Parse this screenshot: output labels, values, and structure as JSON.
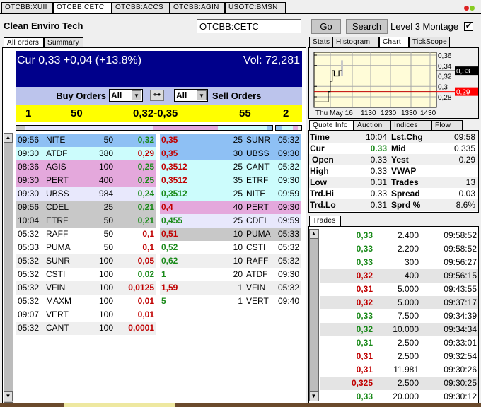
{
  "symbol_tabs": [
    "OTCBB:XUII",
    "OTCBB:CETC",
    "OTCBB:ACCS",
    "OTCBB:AGIN",
    "USOTC:BMSN"
  ],
  "selected_symbol_tab": 1,
  "header": {
    "company": "Clean Enviro Tech",
    "symbol_value": "OTCBB:CETC",
    "go_label": "Go",
    "search_label": "Search",
    "level3_label": "Level 3 Montage",
    "level3_checked": true
  },
  "left_tabs": [
    "All orders",
    "Summary"
  ],
  "summary": {
    "cur": "Cur 0,33 +0,04 (+13.8%)",
    "vol": "Vol: 72,281",
    "buy_label": "Buy Orders",
    "sell_label": "Sell Orders",
    "buy_filter": "All",
    "sell_filter": "All"
  },
  "inside": {
    "bid_count": "1",
    "bid_size": "50",
    "spread": "0,32-0,35",
    "ask_size": "55",
    "ask_count": "2"
  },
  "bid_orders": [
    {
      "time": "09:56",
      "mm": "NITE",
      "size": "50",
      "price": "0,32",
      "pc": "g",
      "bg": "#8ec0f4"
    },
    {
      "time": "09:30",
      "mm": "ATDF",
      "size": "380",
      "price": "0,29",
      "pc": "r",
      "bg": "#ccfcfc"
    },
    {
      "time": "08:36",
      "mm": "AGIS",
      "size": "100",
      "price": "0,25",
      "pc": "g",
      "bg": "#e4a8dc"
    },
    {
      "time": "09:30",
      "mm": "PERT",
      "size": "400",
      "price": "0,25",
      "pc": "g",
      "bg": "#e4a8dc"
    },
    {
      "time": "09:30",
      "mm": "UBSS",
      "size": "984",
      "price": "0,24",
      "pc": "g",
      "bg": "#e8e8fc"
    },
    {
      "time": "09:56",
      "mm": "CDEL",
      "size": "25",
      "price": "0,21",
      "pc": "g",
      "bg": "#c8c8c8"
    },
    {
      "time": "10:04",
      "mm": "ETRF",
      "size": "50",
      "price": "0,21",
      "pc": "g",
      "bg": "#c8c8c8"
    },
    {
      "time": "05:32",
      "mm": "RAFF",
      "size": "50",
      "price": "0,1",
      "pc": "r",
      "bg": "#ffffff"
    },
    {
      "time": "05:33",
      "mm": "PUMA",
      "size": "50",
      "price": "0,1",
      "pc": "r",
      "bg": "#ffffff"
    },
    {
      "time": "05:32",
      "mm": "SUNR",
      "size": "100",
      "price": "0,05",
      "pc": "r",
      "bg": "#efefef"
    },
    {
      "time": "05:32",
      "mm": "CSTI",
      "size": "100",
      "price": "0,02",
      "pc": "g",
      "bg": "#ffffff"
    },
    {
      "time": "05:32",
      "mm": "VFIN",
      "size": "100",
      "price": "0,0125",
      "pc": "r",
      "bg": "#efefef"
    },
    {
      "time": "05:32",
      "mm": "MAXM",
      "size": "100",
      "price": "0,01",
      "pc": "r",
      "bg": "#ffffff"
    },
    {
      "time": "09:07",
      "mm": "VERT",
      "size": "100",
      "price": "0,01",
      "pc": "r",
      "bg": "#ffffff"
    },
    {
      "time": "05:32",
      "mm": "CANT",
      "size": "100",
      "price": "0,0001",
      "pc": "r",
      "bg": "#efefef"
    }
  ],
  "ask_orders": [
    {
      "price": "0,35",
      "pc": "r",
      "size": "25",
      "mm": "SUNR",
      "time": "05:32",
      "bg": "#8ec0f4"
    },
    {
      "price": "0,35",
      "pc": "r",
      "size": "30",
      "mm": "UBSS",
      "time": "09:30",
      "bg": "#8ec0f4"
    },
    {
      "price": "0,3512",
      "pc": "r",
      "size": "25",
      "mm": "CANT",
      "time": "05:32",
      "bg": "#ccfcfc"
    },
    {
      "price": "0,3512",
      "pc": "r",
      "size": "35",
      "mm": "ETRF",
      "time": "09:30",
      "bg": "#ccfcfc"
    },
    {
      "price": "0,3512",
      "pc": "g",
      "size": "25",
      "mm": "NITE",
      "time": "09:59",
      "bg": "#ccfcfc"
    },
    {
      "price": "0,4",
      "pc": "r",
      "size": "40",
      "mm": "PERT",
      "time": "09:30",
      "bg": "#e4a8dc"
    },
    {
      "price": "0,455",
      "pc": "g",
      "size": "25",
      "mm": "CDEL",
      "time": "09:59",
      "bg": "#e8e8fc"
    },
    {
      "price": "0,51",
      "pc": "r",
      "size": "10",
      "mm": "PUMA",
      "time": "05:33",
      "bg": "#c8c8c8"
    },
    {
      "price": "0,52",
      "pc": "g",
      "size": "10",
      "mm": "CSTI",
      "time": "05:32",
      "bg": "#ffffff"
    },
    {
      "price": "0,62",
      "pc": "g",
      "size": "10",
      "mm": "RAFF",
      "time": "05:32",
      "bg": "#efefef"
    },
    {
      "price": "1",
      "pc": "g",
      "size": "20",
      "mm": "ATDF",
      "time": "09:30",
      "bg": "#ffffff"
    },
    {
      "price": "1,59",
      "pc": "r",
      "size": "1",
      "mm": "VFIN",
      "time": "05:32",
      "bg": "#efefef"
    },
    {
      "price": "5",
      "pc": "g",
      "size": "1",
      "mm": "VERT",
      "time": "09:40",
      "bg": "#ffffff"
    }
  ],
  "right_tabs": [
    "Stats",
    "Histogram",
    "Chart",
    "TickScope"
  ],
  "chart": {
    "y_ticks": [
      "0,36",
      "0,34",
      "0,32",
      "0,3",
      "0,28"
    ],
    "y_tick_values": [
      0.36,
      0.34,
      0.32,
      0.3,
      0.28
    ],
    "x_labels": [
      "Thu May 16",
      "1130",
      "1230",
      "1330",
      "1430"
    ],
    "cur_label": "0,33",
    "cur_value": 0.33,
    "yest_label": "0,29",
    "yest_value": 0.29,
    "price_steps": [
      [
        "09:12",
        0.27
      ],
      [
        "09:53",
        0.29
      ],
      [
        "09:59",
        0.31
      ],
      [
        "10:05",
        0.33
      ],
      [
        "10:11",
        0.32
      ],
      [
        "10:20",
        0.32
      ],
      [
        "10:25",
        0.33
      ],
      [
        "10:33",
        0.33
      ]
    ]
  },
  "quote_tabs": [
    "Quote Info",
    "Auction",
    "Indices",
    "Flow"
  ],
  "quote": [
    [
      "Time",
      "10:04",
      "Lst.Chg",
      "09:58"
    ],
    [
      "Cur",
      "0.33",
      "Mid",
      "0.335"
    ],
    [
      "Open",
      "0.33",
      "Yest",
      "0.29"
    ],
    [
      "High",
      "0.33",
      "VWAP",
      ""
    ],
    [
      "Low",
      "0.31",
      "Trades",
      "13"
    ],
    [
      "Trd.Hi",
      "0.33",
      "Spread",
      "0.03"
    ],
    [
      "Trd.Lo",
      "0.31",
      "Sprd %",
      "8.6%"
    ]
  ],
  "trades_tab": "Trades",
  "trades": [
    {
      "price": "0,33",
      "pc": "g",
      "size": "2.400",
      "time": "09:58:52",
      "bg": "#ffffff"
    },
    {
      "price": "0,33",
      "pc": "g",
      "size": "2.200",
      "time": "09:58:52",
      "bg": "#ffffff"
    },
    {
      "price": "0,33",
      "pc": "g",
      "size": "300",
      "time": "09:56:27",
      "bg": "#ffffff"
    },
    {
      "price": "0,32",
      "pc": "r",
      "size": "400",
      "time": "09:56:15",
      "bg": "#e4e4e4"
    },
    {
      "price": "0,31",
      "pc": "r",
      "size": "5.000",
      "time": "09:43:55",
      "bg": "#ffffff"
    },
    {
      "price": "0,32",
      "pc": "r",
      "size": "5.000",
      "time": "09:37:17",
      "bg": "#e4e4e4"
    },
    {
      "price": "0,33",
      "pc": "g",
      "size": "7.500",
      "time": "09:34:39",
      "bg": "#ffffff"
    },
    {
      "price": "0,32",
      "pc": "g",
      "size": "10.000",
      "time": "09:34:34",
      "bg": "#e4e4e4"
    },
    {
      "price": "0,31",
      "pc": "g",
      "size": "2.500",
      "time": "09:33:01",
      "bg": "#ffffff"
    },
    {
      "price": "0,31",
      "pc": "r",
      "size": "2.500",
      "time": "09:32:54",
      "bg": "#ffffff"
    },
    {
      "price": "0,31",
      "pc": "r",
      "size": "11.981",
      "time": "09:30:26",
      "bg": "#ffffff"
    },
    {
      "price": "0,325",
      "pc": "r",
      "size": "2.500",
      "time": "09:30:25",
      "bg": "#e4e4e4"
    },
    {
      "price": "0,33",
      "pc": "g",
      "size": "20.000",
      "time": "09:30:12",
      "bg": "#ffffff"
    }
  ],
  "colors": {
    "cur_bar": "#00008b",
    "filter_bar": "#bcc4ec",
    "inside_bar": "#ffff00",
    "up": "#1a8a1a",
    "down": "#c00000",
    "chart_bg": "#fffcd8"
  }
}
